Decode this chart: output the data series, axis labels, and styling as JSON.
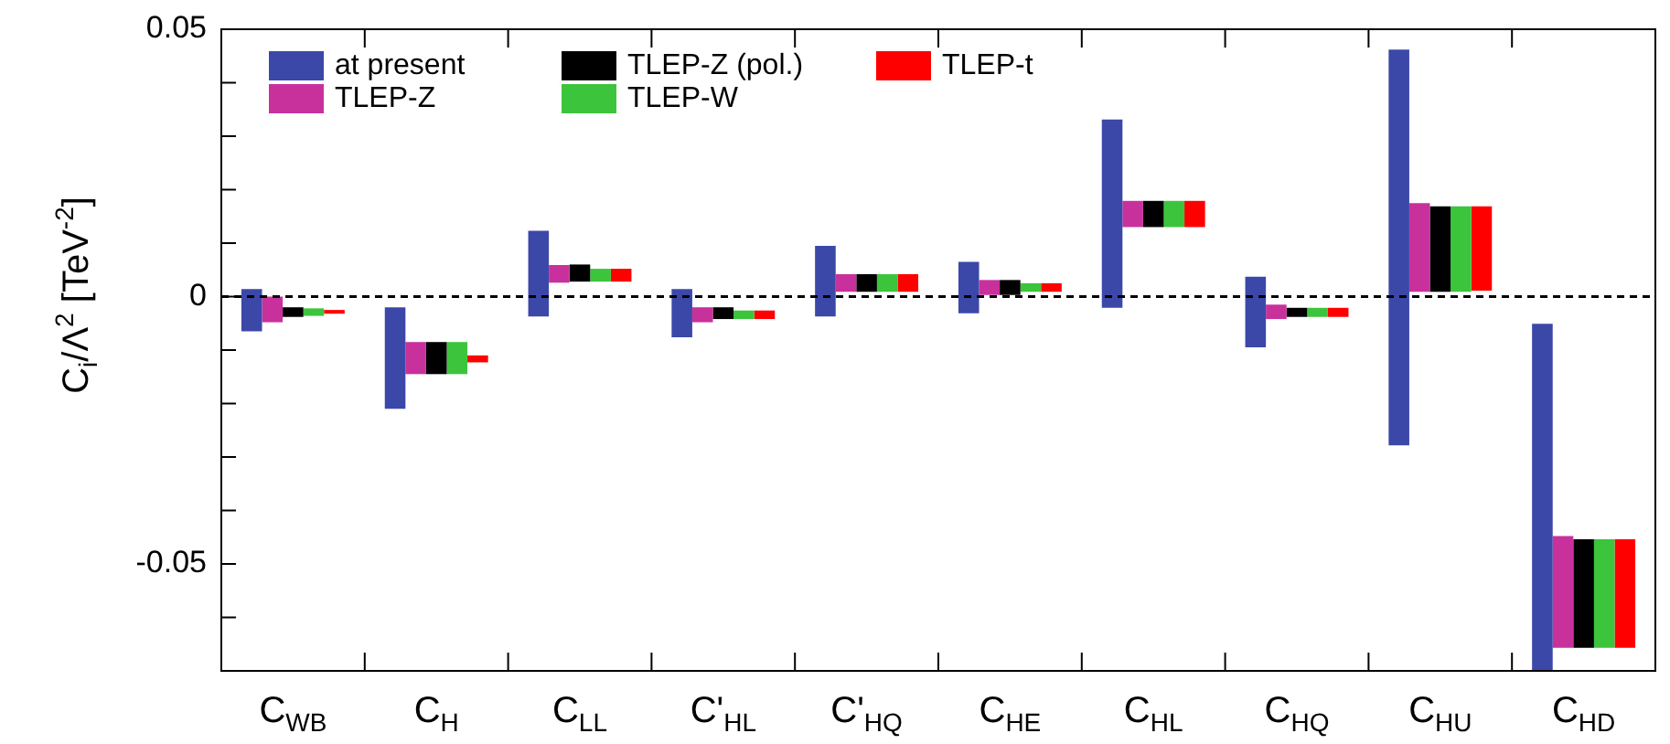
{
  "chart_data": {
    "type": "bar",
    "ylabel": "C$_{i}$/Λ$^{2}$ [TeV$^{-2}$]",
    "categories": [
      "C$_{WB}$",
      "C$_{H}$",
      "C$_{LL}$",
      "C'$_{HL}$",
      "C'$_{HQ}$",
      "C$_{HE}$",
      "C$_{HL}$",
      "C$_{HQ}$",
      "C$_{HU}$",
      "C$_{HD}$"
    ],
    "series": [
      {
        "name": "at present",
        "color": "#3c48a8",
        "base": [
          -0.0065,
          -0.021,
          -0.0037,
          -0.0076,
          -0.0037,
          -0.0031,
          -0.0021,
          -0.0095,
          -0.0278,
          -0.07
        ],
        "values": [
          0.0079,
          0.019,
          0.016,
          0.009,
          0.0132,
          0.0096,
          0.0352,
          0.0132,
          0.074,
          0.0649
        ]
      },
      {
        "name": "TLEP-Z",
        "color": "#c8309c",
        "base": [
          -0.0048,
          -0.0145,
          0.0026,
          -0.0048,
          0.0009,
          0.0003,
          0.013,
          -0.0042,
          0.0009,
          -0.0657
        ],
        "values": [
          0.0048,
          0.006,
          0.0033,
          0.0028,
          0.0033,
          0.0028,
          0.0049,
          0.0027,
          0.0166,
          0.0209
        ]
      },
      {
        "name": "TLEP-Z (pol.)",
        "color": "#000000",
        "base": [
          -0.0038,
          -0.0145,
          0.0028,
          -0.0042,
          0.0009,
          0.0003,
          0.013,
          -0.0038,
          0.0009,
          -0.0657
        ],
        "values": [
          0.0018,
          0.006,
          0.0032,
          0.0022,
          0.0033,
          0.0028,
          0.0049,
          0.0017,
          0.016,
          0.0203
        ]
      },
      {
        "name": "TLEP-W",
        "color": "#3cc43c",
        "base": [
          -0.0036,
          -0.0145,
          0.0028,
          -0.0042,
          0.0009,
          0.0009,
          0.013,
          -0.0038,
          0.0009,
          -0.0657
        ],
        "values": [
          0.0014,
          0.006,
          0.0024,
          0.0016,
          0.0033,
          0.0016,
          0.0049,
          0.0017,
          0.016,
          0.0203
        ]
      },
      {
        "name": "TLEP-t",
        "color": "#ff0000",
        "base": [
          -0.0032,
          -0.0123,
          0.0028,
          -0.0042,
          0.0009,
          0.0009,
          0.013,
          -0.0038,
          0.0011,
          -0.0657
        ],
        "values": [
          0.0007,
          0.0013,
          0.0024,
          0.0016,
          0.0033,
          0.0016,
          0.0049,
          0.0017,
          0.0158,
          0.0203
        ]
      }
    ],
    "ylim": [
      -0.07,
      0.05
    ],
    "yticks": [
      {
        "value": -0.07,
        "label": null
      },
      {
        "value": -0.06,
        "label": null
      },
      -0.05,
      {
        "value": -0.04,
        "label": null
      },
      {
        "value": -0.03,
        "label": null
      },
      {
        "value": -0.02,
        "label": null
      },
      {
        "value": -0.01,
        "label": null
      },
      0,
      {
        "value": 0.01,
        "label": null
      },
      {
        "value": 0.02,
        "label": null
      },
      {
        "value": 0.03,
        "label": null
      },
      {
        "value": 0.04,
        "label": null
      },
      0.05
    ],
    "ref_lines": [
      {
        "axis": "y",
        "value": 0,
        "color": "#000000",
        "line_style": "dashed"
      }
    ],
    "grid": false,
    "legend": "top left"
  }
}
